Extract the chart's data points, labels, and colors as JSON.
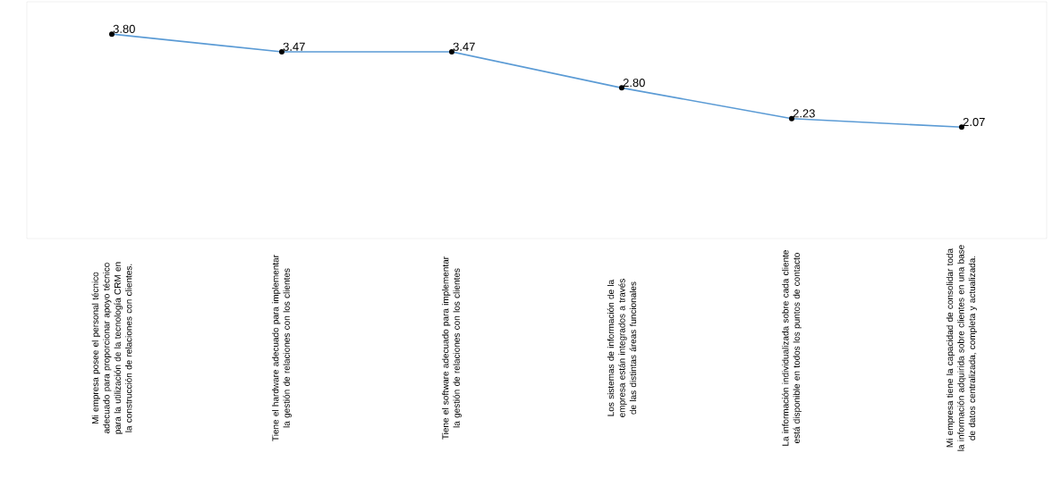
{
  "chart_data": {
    "type": "line",
    "categories": [
      "Mi empresa posee el personal técnico adecuado para proporcionar apoyo técnico para la utilización de la tecnología CRM en la construcción de relaciones con clientes.",
      "Tiene el hardware adecuado para implementar la gestión de relaciones con los clientes",
      "Tiene el software adecuado para implementar la gestión de relaciones con los clientes",
      "Los sistemas de información de la empresa están integrados a través de las distintas áreas funcionales",
      "La información individualizada sobre cada cliente está disponible en todos los puntos de contacto",
      "Mi empresa tiene la capacidad de consolidar toda la información adquirida sobre clientes en una base de datos centralizada, completa y actualizada."
    ],
    "values": [
      3.8,
      3.47,
      3.47,
      2.8,
      2.23,
      2.07
    ],
    "value_labels": [
      "3.80",
      "3.47",
      "3.47",
      "2.80",
      "2.23",
      "2.07"
    ],
    "color": "#5b9bd5",
    "marker": "circle",
    "ylim": [
      0,
      4.4
    ],
    "tick_labels": "x"
  }
}
